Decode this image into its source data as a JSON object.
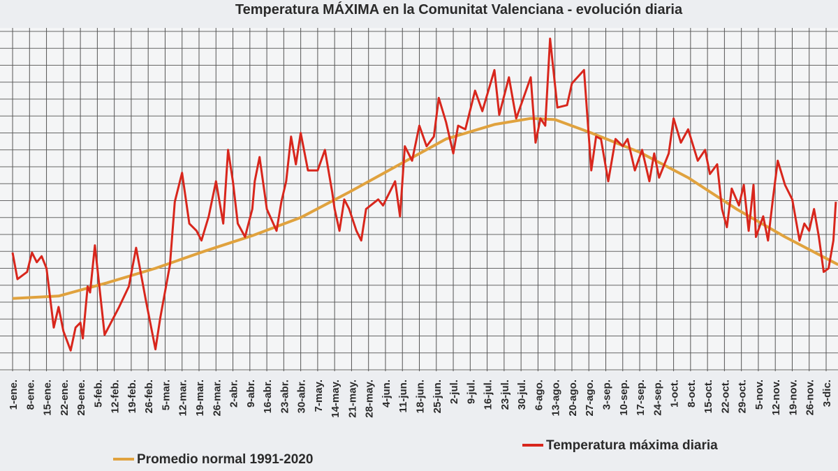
{
  "chart_data": {
    "type": "line",
    "title": "Temperatura MÁXIMA en la Comunitat Valenciana - evolución diaria",
    "xlim": [
      -4.2,
      341.9
    ],
    "ylim": [
      10,
      38
    ],
    "grid": true,
    "xticks": [
      {
        "value": 1,
        "label": "1-ene."
      },
      {
        "value": 8,
        "label": "8-ene."
      },
      {
        "value": 15,
        "label": "15-ene."
      },
      {
        "value": 22,
        "label": "22-ene."
      },
      {
        "value": 29,
        "label": "29-ene."
      },
      {
        "value": 36,
        "label": "5-feb."
      },
      {
        "value": 43,
        "label": "12-feb."
      },
      {
        "value": 50,
        "label": "19-feb."
      },
      {
        "value": 57,
        "label": "26-feb."
      },
      {
        "value": 64,
        "label": "5-mar."
      },
      {
        "value": 71,
        "label": "12-mar."
      },
      {
        "value": 78,
        "label": "19-mar."
      },
      {
        "value": 85,
        "label": "26-mar."
      },
      {
        "value": 92,
        "label": "2-abr."
      },
      {
        "value": 99,
        "label": "9-abr."
      },
      {
        "value": 106,
        "label": "16-abr."
      },
      {
        "value": 113,
        "label": "23-abr."
      },
      {
        "value": 120,
        "label": "30-abr."
      },
      {
        "value": 127,
        "label": "7-may."
      },
      {
        "value": 134,
        "label": "14-may."
      },
      {
        "value": 141,
        "label": "21-may."
      },
      {
        "value": 148,
        "label": "28-may."
      },
      {
        "value": 155,
        "label": "4-jun."
      },
      {
        "value": 162,
        "label": "11-jun."
      },
      {
        "value": 169,
        "label": "18-jun."
      },
      {
        "value": 176,
        "label": "25-jun."
      },
      {
        "value": 183,
        "label": "2-jul."
      },
      {
        "value": 190,
        "label": "9-jul."
      },
      {
        "value": 197,
        "label": "16-jul."
      },
      {
        "value": 204,
        "label": "23-jul."
      },
      {
        "value": 211,
        "label": "30-jul."
      },
      {
        "value": 218,
        "label": "6-ago."
      },
      {
        "value": 225,
        "label": "13-ago."
      },
      {
        "value": 232,
        "label": "20-ago."
      },
      {
        "value": 239,
        "label": "27-ago."
      },
      {
        "value": 246,
        "label": "3-sep."
      },
      {
        "value": 253,
        "label": "10-sep."
      },
      {
        "value": 260,
        "label": "17-sep."
      },
      {
        "value": 267,
        "label": "24-sep."
      },
      {
        "value": 274,
        "label": "1-oct."
      },
      {
        "value": 281,
        "label": "8-oct."
      },
      {
        "value": 288,
        "label": "15-oct."
      },
      {
        "value": 295,
        "label": "22-oct."
      },
      {
        "value": 302,
        "label": "29-oct."
      },
      {
        "value": 309,
        "label": "5-nov."
      },
      {
        "value": 316,
        "label": "12-nov."
      },
      {
        "value": 323,
        "label": "19-nov."
      },
      {
        "value": 330,
        "label": "26-nov."
      },
      {
        "value": 337,
        "label": "3-dic."
      }
    ],
    "series": [
      {
        "name": "Temperatura máxima diaria",
        "color": "#d8261c",
        "x": [
          1,
          3,
          7,
          9,
          11,
          13,
          15,
          18,
          20,
          22,
          25,
          27,
          29,
          30,
          32,
          33,
          35,
          39,
          45,
          49,
          52,
          56,
          60,
          62,
          66,
          68,
          71,
          74,
          77,
          79,
          82,
          85,
          88,
          90,
          92,
          94,
          97,
          100,
          101,
          103,
          106,
          110,
          112,
          114,
          116,
          118,
          120,
          123,
          127,
          130,
          133,
          134,
          136,
          138,
          140,
          143,
          145,
          147,
          152,
          154,
          159,
          161,
          163,
          166,
          169,
          172,
          175,
          177,
          180,
          183,
          185,
          188,
          192,
          195,
          200,
          202,
          206,
          209,
          212,
          215,
          217,
          219,
          221,
          223,
          226,
          230,
          232,
          237,
          240,
          242,
          244,
          247,
          250,
          253,
          255,
          258,
          261,
          264,
          266,
          268,
          272,
          274,
          277,
          280,
          284,
          287,
          289,
          292,
          294,
          296,
          298,
          301,
          303,
          305,
          307,
          308,
          311,
          313,
          315,
          317,
          320,
          323,
          326,
          328,
          330,
          332,
          334,
          336,
          338,
          340,
          341
        ],
        "values": [
          19.7,
          17.5,
          18.1,
          19.7,
          18.9,
          19.4,
          18.4,
          13.5,
          15.2,
          13.2,
          11.6,
          13.5,
          13.9,
          12.6,
          16.9,
          16.4,
          20.3,
          12.9,
          15.2,
          16.9,
          20.1,
          15.8,
          11.7,
          14.3,
          18.7,
          23.9,
          26.3,
          22.1,
          21.5,
          20.7,
          22.7,
          25.6,
          22.1,
          28.2,
          25.6,
          22.1,
          21.0,
          23.3,
          25.6,
          27.6,
          23.3,
          21.5,
          23.9,
          25.6,
          29.3,
          27.0,
          29.6,
          26.5,
          26.5,
          28.2,
          24.7,
          23.3,
          21.5,
          24.1,
          23.3,
          21.5,
          20.7,
          23.3,
          24.1,
          23.6,
          25.6,
          22.7,
          28.5,
          27.3,
          30.2,
          28.5,
          29.3,
          32.5,
          30.5,
          27.9,
          30.2,
          29.9,
          33.1,
          31.4,
          34.8,
          31.1,
          34.2,
          30.8,
          32.5,
          34.2,
          28.8,
          30.8,
          30.2,
          37.4,
          31.7,
          31.9,
          33.7,
          34.8,
          26.5,
          29.3,
          29.1,
          25.6,
          29.1,
          28.5,
          29.1,
          26.5,
          28.2,
          25.6,
          27.9,
          25.9,
          27.9,
          30.8,
          28.8,
          29.9,
          27.3,
          28.2,
          26.2,
          27.0,
          23.3,
          21.8,
          25.0,
          23.6,
          25.3,
          21.5,
          25.3,
          21.0,
          22.7,
          20.7,
          24.1,
          27.3,
          25.3,
          24.1,
          20.7,
          22.1,
          21.5,
          23.3,
          21.0,
          18.1,
          18.4,
          20.7,
          23.9
        ]
      },
      {
        "name": "Promedio normal 1991-2020",
        "color": "#e0a23e",
        "x": [
          1,
          20,
          40,
          60,
          80,
          100,
          120,
          140,
          160,
          180,
          200,
          215,
          225,
          240,
          260,
          280,
          300,
          320,
          342
        ],
        "values": [
          15.9,
          16.1,
          17.2,
          18.4,
          19.8,
          21.1,
          22.6,
          24.7,
          26.9,
          29.1,
          30.3,
          30.8,
          30.7,
          29.6,
          28.0,
          25.9,
          23.3,
          21.0,
          18.7
        ]
      }
    ]
  }
}
